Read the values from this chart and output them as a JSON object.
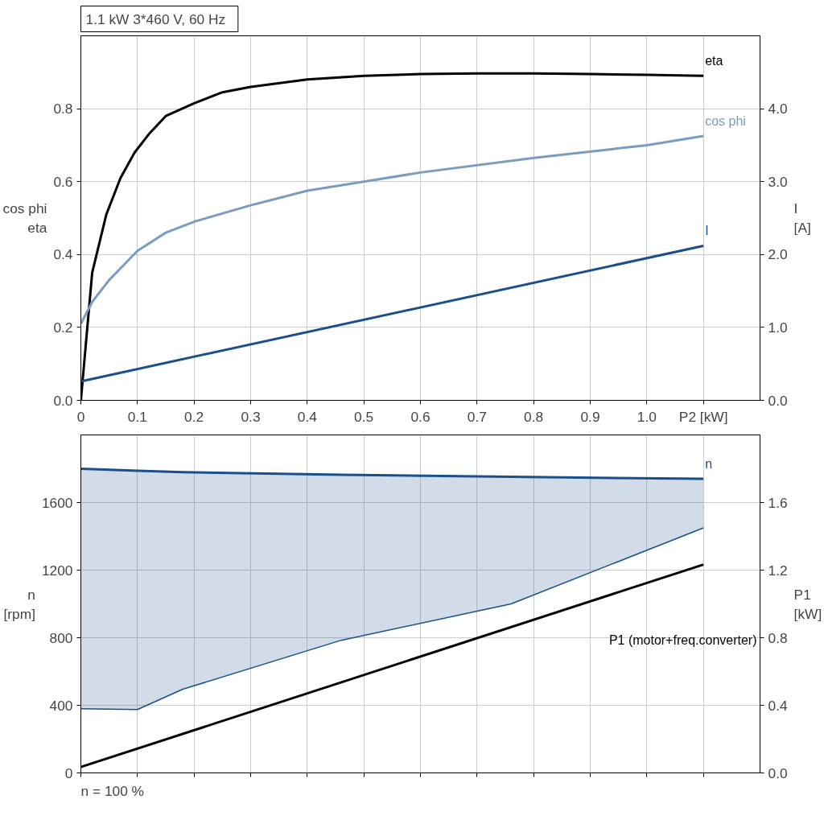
{
  "chart_data": [
    {
      "type": "line",
      "title": "1.1 kW   3*460 V, 60 Hz",
      "ylabel": "cos phi\neta",
      "y2label": "I\n[A]",
      "grid": true,
      "xlim": [
        0,
        1.2
      ],
      "xticks": [
        0,
        0.1,
        0.2,
        0.3,
        0.4,
        0.5,
        0.6,
        0.7,
        0.8,
        0.9,
        {
          "value": 1,
          "label": "1.0"
        },
        {
          "value": 1.1,
          "label": "P2 [kW]"
        }
      ],
      "ylim": [
        0,
        1
      ],
      "yticks": [
        {
          "value": 0,
          "label": "0.0"
        },
        0.2,
        0.4,
        0.6,
        0.8
      ],
      "y2lim": [
        0,
        5
      ],
      "y2ticks": [
        {
          "value": 0,
          "label": "0.0"
        },
        {
          "value": 1,
          "label": "1.0"
        },
        {
          "value": 2,
          "label": "2.0"
        },
        {
          "value": 3,
          "label": "3.0"
        },
        {
          "value": 4,
          "label": "4.0"
        }
      ],
      "series": [
        {
          "name": "eta",
          "color": "#000000",
          "x": [
            0,
            0.02,
            0.045,
            0.07,
            0.095,
            0.12,
            0.15,
            0.2,
            0.25,
            0.3,
            0.4,
            0.5,
            0.6,
            0.7,
            0.8,
            0.9,
            1.0,
            1.1
          ],
          "values": [
            0,
            0.35,
            0.51,
            0.61,
            0.68,
            0.73,
            0.78,
            0.815,
            0.845,
            0.86,
            0.88,
            0.89,
            0.895,
            0.897,
            0.897,
            0.895,
            0.893,
            0.89
          ]
        },
        {
          "name": "cos phi",
          "color": "#7a9cc0",
          "x": [
            0,
            0.02,
            0.05,
            0.1,
            0.15,
            0.2,
            0.3,
            0.4,
            0.5,
            0.6,
            0.8,
            1.0,
            1.1
          ],
          "values": [
            0.21,
            0.27,
            0.33,
            0.41,
            0.46,
            0.49,
            0.535,
            0.575,
            0.6,
            0.625,
            0.665,
            0.7,
            0.725
          ]
        },
        {
          "name": "I",
          "color": "#1a4f8a",
          "axis": "y2",
          "x": [
            0,
            1.1
          ],
          "values": [
            0.26,
            2.12
          ]
        }
      ]
    },
    {
      "type": "line",
      "ylabel": "n\n[rpm]",
      "y2label": "P1\n[kW]",
      "grid": true,
      "tick_labels": "y",
      "annotations": [
        "n = 100 %"
      ],
      "xlim": [
        0,
        1.2
      ],
      "xticks": [
        0,
        0.1,
        0.2,
        0.3,
        0.4,
        0.5,
        0.6,
        0.7,
        0.8,
        0.9,
        1,
        1.1
      ],
      "ylim": [
        0,
        2000
      ],
      "yticks": [
        0,
        400,
        800,
        1200,
        1600
      ],
      "y2lim": [
        0,
        2
      ],
      "y2ticks": [
        {
          "value": 0,
          "label": "0.0"
        },
        0.4,
        0.8,
        1.2,
        1.6
      ],
      "series": [
        {
          "name": "n",
          "color": "#1a4f8a",
          "x": [
            0,
            0.1,
            0.18,
            0.46,
            0.76,
            1.1
          ],
          "values": [
            1800,
            1788,
            1780,
            1764,
            1752,
            1740
          ],
          "upper": [
            1800,
            1788,
            1780,
            1764,
            1752,
            1740
          ],
          "lower": [
            380,
            375,
            495,
            785,
            1000,
            1450
          ]
        },
        {
          "color": "#1a4f8a",
          "x": [
            0,
            0.1,
            0.18,
            0.46,
            0.76,
            1.1
          ],
          "values": [
            380,
            375,
            495,
            785,
            1000,
            1450
          ]
        },
        {
          "name": "P1 (motor+freq.converter)",
          "color": "#000000",
          "axis": "y2",
          "x": [
            0,
            1.1
          ],
          "values": [
            0.035,
            1.233
          ]
        }
      ]
    }
  ]
}
